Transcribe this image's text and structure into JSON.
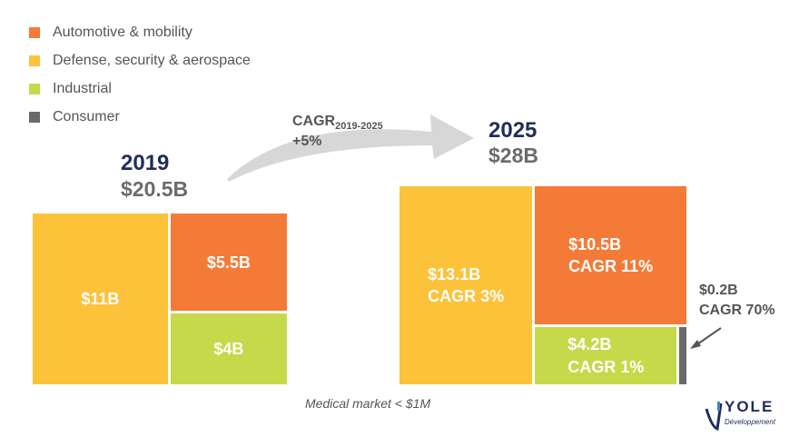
{
  "legend": [
    {
      "label": "Automotive & mobility",
      "color": "#f47a38"
    },
    {
      "label": "Defense, security & aerospace",
      "color": "#fcc23a"
    },
    {
      "label": "Industrial",
      "color": "#c5d94a"
    },
    {
      "label": "Consumer",
      "color": "#6a6a6a"
    }
  ],
  "cagr": {
    "label": "CAGR",
    "sub": "2019-2025",
    "value": "+5%"
  },
  "note": "Medical market < $1M",
  "logo": {
    "name": "YOLE",
    "sub": "Développement"
  },
  "chart_data": [
    {
      "type": "treemap",
      "title": "2019",
      "total_label": "$20.5B",
      "total": 20.5,
      "series": [
        {
          "name": "Defense, security & aerospace",
          "value": 11,
          "label": "$11B"
        },
        {
          "name": "Automotive & mobility",
          "value": 5.5,
          "label": "$5.5B"
        },
        {
          "name": "Industrial",
          "value": 4,
          "label": "$4B"
        }
      ]
    },
    {
      "type": "treemap",
      "title": "2025",
      "total_label": "$28B",
      "total": 28,
      "series": [
        {
          "name": "Defense, security & aerospace",
          "value": 13.1,
          "label": "$13.1B\nCAGR 3%"
        },
        {
          "name": "Automotive & mobility",
          "value": 10.5,
          "label": "$10.5B\nCAGR 11%"
        },
        {
          "name": "Industrial",
          "value": 4.2,
          "label": "$4.2B\nCAGR 1%"
        },
        {
          "name": "Consumer",
          "value": 0.2,
          "label": "$0.2B\nCAGR 70%"
        }
      ]
    }
  ]
}
